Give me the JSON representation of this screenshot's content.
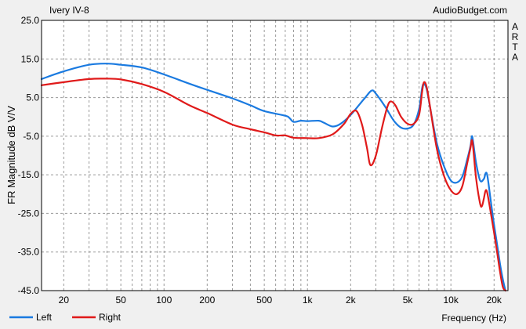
{
  "chart_data": {
    "type": "line",
    "title": "Ivery IV-8",
    "source": "AudioBudget.com",
    "side_label": "ARTA",
    "xlabel": "Frequency (Hz)",
    "ylabel": "FR Magnitude dB V/V",
    "x_scale": "log",
    "xlim": [
      14,
      25000
    ],
    "ylim": [
      -45,
      25
    ],
    "x_ticks": [
      {
        "value": 20,
        "label": "20"
      },
      {
        "value": 50,
        "label": "50"
      },
      {
        "value": 100,
        "label": "100"
      },
      {
        "value": 200,
        "label": "200"
      },
      {
        "value": 500,
        "label": "500"
      },
      {
        "value": 1000,
        "label": "1k"
      },
      {
        "value": 2000,
        "label": "2k"
      },
      {
        "value": 5000,
        "label": "5k"
      },
      {
        "value": 10000,
        "label": "10k"
      },
      {
        "value": 20000,
        "label": "20k"
      }
    ],
    "y_ticks": [
      {
        "value": 25,
        "label": "25.0"
      },
      {
        "value": 15,
        "label": "15.0"
      },
      {
        "value": 5,
        "label": "5.0"
      },
      {
        "value": -5,
        "label": "-5.0"
      },
      {
        "value": -15,
        "label": "-15.0"
      },
      {
        "value": -25,
        "label": "-25.0"
      },
      {
        "value": -35,
        "label": "-35.0"
      },
      {
        "value": -45,
        "label": "-45.0"
      }
    ],
    "grid": true,
    "legend_position": "bottom-left",
    "series": [
      {
        "name": "Left",
        "color": "#1a7ae0",
        "points": [
          [
            14,
            9.8
          ],
          [
            20,
            11.8
          ],
          [
            30,
            13.5
          ],
          [
            40,
            13.8
          ],
          [
            50,
            13.5
          ],
          [
            70,
            12.8
          ],
          [
            100,
            11.0
          ],
          [
            150,
            8.6
          ],
          [
            200,
            7.0
          ],
          [
            300,
            4.8
          ],
          [
            400,
            3.0
          ],
          [
            500,
            1.5
          ],
          [
            700,
            0.3
          ],
          [
            750,
            -0.3
          ],
          [
            800,
            -1.3
          ],
          [
            900,
            -1.0
          ],
          [
            1000,
            -1.1
          ],
          [
            1200,
            -1.0
          ],
          [
            1300,
            -1.5
          ],
          [
            1500,
            -2.5
          ],
          [
            1700,
            -1.8
          ],
          [
            2000,
            0.5
          ],
          [
            2500,
            4.8
          ],
          [
            2800,
            6.8
          ],
          [
            3000,
            6.0
          ],
          [
            3500,
            2.5
          ],
          [
            4000,
            -1.0
          ],
          [
            4500,
            -2.8
          ],
          [
            5000,
            -3.0
          ],
          [
            5500,
            -2.0
          ],
          [
            6000,
            2.0
          ],
          [
            6300,
            7.5
          ],
          [
            6500,
            8.5
          ],
          [
            6800,
            7.0
          ],
          [
            7200,
            2.0
          ],
          [
            8000,
            -7.0
          ],
          [
            9000,
            -13.0
          ],
          [
            10000,
            -16.5
          ],
          [
            11000,
            -17.0
          ],
          [
            12000,
            -15.5
          ],
          [
            13000,
            -11.0
          ],
          [
            13700,
            -7.5
          ],
          [
            14000,
            -5.0
          ],
          [
            14300,
            -6.5
          ],
          [
            15000,
            -12.0
          ],
          [
            16000,
            -16.5
          ],
          [
            17000,
            -16.0
          ],
          [
            17500,
            -14.5
          ],
          [
            18000,
            -15.5
          ],
          [
            19000,
            -22.0
          ],
          [
            20000,
            -28.0
          ],
          [
            21000,
            -33.0
          ],
          [
            22000,
            -38.0
          ],
          [
            23000,
            -42.0
          ],
          [
            24000,
            -45.0
          ]
        ]
      },
      {
        "name": "Right",
        "color": "#e01a1a",
        "points": [
          [
            14,
            8.2
          ],
          [
            20,
            9.0
          ],
          [
            30,
            9.8
          ],
          [
            40,
            9.9
          ],
          [
            50,
            9.7
          ],
          [
            70,
            8.5
          ],
          [
            100,
            6.5
          ],
          [
            150,
            3.0
          ],
          [
            200,
            1.0
          ],
          [
            300,
            -2.0
          ],
          [
            400,
            -3.2
          ],
          [
            500,
            -4.0
          ],
          [
            600,
            -4.8
          ],
          [
            700,
            -4.8
          ],
          [
            800,
            -5.4
          ],
          [
            1000,
            -5.5
          ],
          [
            1200,
            -5.5
          ],
          [
            1500,
            -4.5
          ],
          [
            1800,
            -1.8
          ],
          [
            2000,
            0.8
          ],
          [
            2200,
            1.5
          ],
          [
            2400,
            -2.0
          ],
          [
            2600,
            -8.0
          ],
          [
            2750,
            -12.5
          ],
          [
            3000,
            -10.0
          ],
          [
            3300,
            -3.0
          ],
          [
            3600,
            2.5
          ],
          [
            3800,
            4.0
          ],
          [
            4100,
            3.0
          ],
          [
            4500,
            0.0
          ],
          [
            5000,
            -1.8
          ],
          [
            5500,
            -1.8
          ],
          [
            6000,
            0.5
          ],
          [
            6300,
            6.5
          ],
          [
            6500,
            9.0
          ],
          [
            6800,
            7.5
          ],
          [
            7200,
            2.0
          ],
          [
            8000,
            -8.5
          ],
          [
            9000,
            -15.5
          ],
          [
            10000,
            -19.0
          ],
          [
            11000,
            -20.0
          ],
          [
            12000,
            -18.0
          ],
          [
            13000,
            -12.0
          ],
          [
            13700,
            -8.0
          ],
          [
            14000,
            -6.0
          ],
          [
            14300,
            -8.0
          ],
          [
            15000,
            -16.0
          ],
          [
            16000,
            -22.5
          ],
          [
            16500,
            -23.0
          ],
          [
            17000,
            -21.0
          ],
          [
            17500,
            -19.0
          ],
          [
            18000,
            -20.0
          ],
          [
            19000,
            -25.0
          ],
          [
            20000,
            -30.0
          ],
          [
            21000,
            -35.0
          ],
          [
            22000,
            -40.0
          ],
          [
            23000,
            -44.0
          ],
          [
            24000,
            -46.0
          ]
        ]
      }
    ]
  }
}
